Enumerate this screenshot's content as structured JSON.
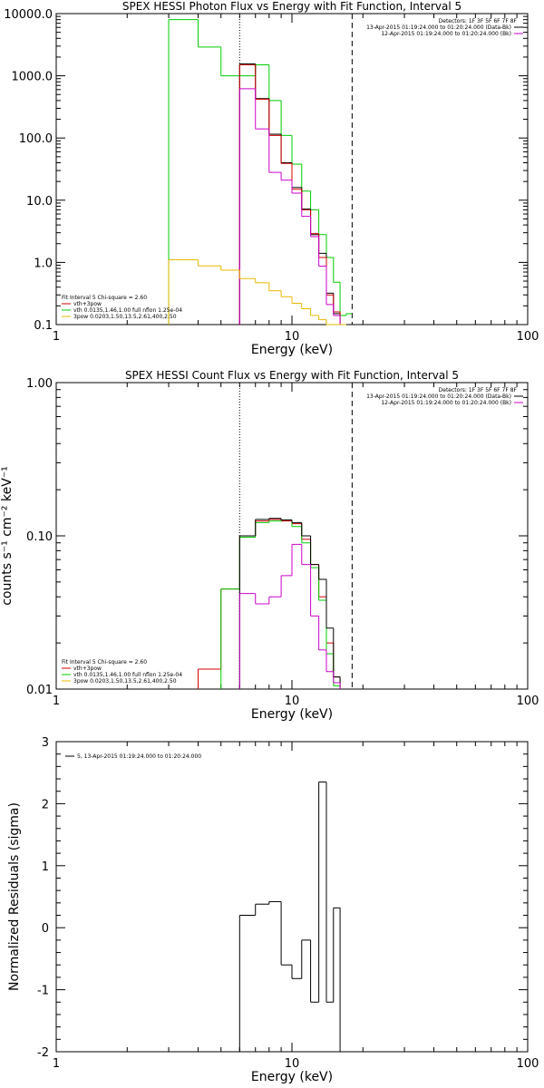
{
  "chart_data": [
    {
      "type": "line",
      "title": "SPEX HESSI Photon Flux vs Energy with Fit Function, Interval 5",
      "xlabel": "Energy (keV)",
      "ylabel": "",
      "x_scale": "log",
      "y_scale": "log",
      "xlim": [
        1,
        100
      ],
      "ylim": [
        0.1,
        10000
      ],
      "x_ticks": [
        "1",
        "10",
        "100"
      ],
      "y_ticks": [
        "10000.0",
        "1000.0",
        "100.0",
        "10.0",
        "1.0",
        "0.1"
      ],
      "vlines": [
        {
          "x": 6,
          "style": "dotted"
        },
        {
          "x": 18,
          "style": "dashed"
        }
      ],
      "legend_tr": {
        "detectors": "Detectors: 1F 3F 5F 6F 7F 8F",
        "lines": [
          {
            "text": "13-Apr-2015 01:19:24.000 to 01:20:24.000 (Data-Bk)",
            "color": "#000000"
          },
          {
            "text": "12-Apr-2015 01:19:24.000 to 01:20:24.000 (Bk)",
            "color": "#cc00cc"
          }
        ]
      },
      "legend_bl": {
        "header": "Fit Interval 5   Chi-square = 2.60",
        "lines": [
          {
            "text": "vth+3pow",
            "color": "#d40000"
          },
          {
            "text": "vth 0.0135,1.46,1.00  full nflon 1.25e-04",
            "color": "#00cc00"
          },
          {
            "text": "3pow 0.0203,1.50,13.5,2.61,400,2.50",
            "color": "#e8b800"
          }
        ]
      },
      "edges": [
        3,
        4,
        5,
        6,
        7,
        8,
        9,
        10,
        11,
        12,
        13,
        14,
        15,
        16,
        17,
        18,
        20
      ],
      "series": [
        {
          "color": "#00cc00",
          "x0": 3,
          "values": [
            8000,
            2900,
            1000,
            1000,
            1500,
            400,
            110,
            38,
            14,
            7,
            2.8,
            1.2,
            0.48,
            0.14,
            0.15,
            null
          ]
        },
        {
          "color": "#000000",
          "x0": 6,
          "values": [
            1550,
            430,
            115,
            40,
            16,
            7.2,
            2.8,
            1.4,
            0.32,
            0.15
          ]
        },
        {
          "color": "#d40000",
          "x0": 6,
          "values": [
            1500,
            420,
            110,
            39,
            15,
            7,
            2.9,
            1.2,
            0.3,
            0.16
          ]
        },
        {
          "color": "#cc00cc",
          "x0": 6,
          "values": [
            620,
            140,
            28,
            21,
            13,
            5.5,
            2.6,
            0.87,
            0.21,
            0.14
          ]
        },
        {
          "color": "#e8b800",
          "x0": 3,
          "values": [
            1.1,
            0.88,
            0.75,
            0.55,
            0.47,
            0.35,
            0.28,
            0.22,
            0.18,
            0.14,
            0.12,
            0.1,
            0.09,
            0.08
          ]
        }
      ]
    },
    {
      "type": "line",
      "title": "SPEX HESSI Count Flux vs Energy with Fit Function, Interval 5",
      "xlabel": "Energy (keV)",
      "ylabel": "counts s⁻¹ cm⁻² keV⁻¹",
      "x_scale": "log",
      "y_scale": "log",
      "xlim": [
        1,
        100
      ],
      "ylim": [
        0.01,
        1
      ],
      "x_ticks": [
        "1",
        "10",
        "100"
      ],
      "y_ticks": [
        "1.00",
        "0.10",
        "0.01"
      ],
      "vlines": [
        {
          "x": 6,
          "style": "dotted"
        },
        {
          "x": 18,
          "style": "dashed"
        }
      ],
      "legend_tr": {
        "detectors": "Detectors: 1F 3F 5F 6F 7F 8F",
        "lines": [
          {
            "text": "13-Apr-2015 01:19:24.000 to 01:20:24.000 (Data-Bk)",
            "color": "#000000"
          },
          {
            "text": "12-Apr-2015 01:19:24.000 to 01:20:24.000 (Bk)",
            "color": "#cc00cc"
          }
        ]
      },
      "legend_bl": {
        "header": "Fit Interval 5   Chi-square = 2.60",
        "lines": [
          {
            "text": "vth+3pow",
            "color": "#d40000"
          },
          {
            "text": "vth 0.0135,1.46,1.00  full nflon 1.25e-04",
            "color": "#00cc00"
          },
          {
            "text": "3pow 0.0203,1.50,13.5,2.61,400,2.50",
            "color": "#e8b800"
          }
        ]
      },
      "edges": [
        4,
        5,
        6,
        7,
        8,
        9,
        10,
        11,
        12,
        13,
        14,
        15,
        16,
        17,
        18,
        20
      ],
      "series": [
        {
          "color": "#d40000",
          "x0": 4,
          "values": [
            0.0135,
            0.045,
            0.1,
            0.125,
            0.128,
            0.125,
            0.12,
            0.095,
            0.065,
            0.04,
            0.02,
            0.012
          ]
        },
        {
          "color": "#00cc00",
          "x0": 4,
          "values": [
            null,
            0.045,
            0.098,
            0.122,
            0.125,
            0.127,
            0.115,
            0.09,
            0.062,
            0.038,
            0.017,
            0.0105
          ]
        },
        {
          "color": "#000000",
          "x0": 6,
          "values": [
            0.1,
            0.128,
            0.13,
            0.127,
            0.122,
            0.1,
            0.065,
            0.052,
            0.025,
            0.012
          ]
        },
        {
          "color": "#cc00cc",
          "x0": 6,
          "values": [
            0.042,
            0.036,
            0.04,
            0.055,
            0.088,
            0.065,
            0.03,
            0.018,
            0.013,
            0.011
          ]
        }
      ]
    },
    {
      "type": "line",
      "title": "",
      "xlabel": "Energy (keV)",
      "ylabel": "Normalized Residuals (sigma)",
      "x_scale": "log",
      "y_scale": "linear",
      "xlim": [
        1,
        100
      ],
      "ylim": [
        -2,
        3
      ],
      "x_ticks": [
        "1",
        "10",
        "100"
      ],
      "y_ticks": [
        "3",
        "2",
        "1",
        "0",
        "-1",
        "-2"
      ],
      "legend": "5, 13-Apr-2015 01:19:24.000 to 01:20:24.000",
      "edges": [
        6,
        7,
        8,
        9,
        10,
        11,
        12,
        13,
        14,
        15,
        16,
        17,
        18
      ],
      "series": [
        {
          "color": "#000000",
          "x0": 6,
          "values": [
            0.2,
            0.38,
            0.42,
            -0.6,
            -0.82,
            -0.2,
            -1.2,
            2.35,
            -1.2,
            0.32
          ]
        }
      ]
    }
  ]
}
